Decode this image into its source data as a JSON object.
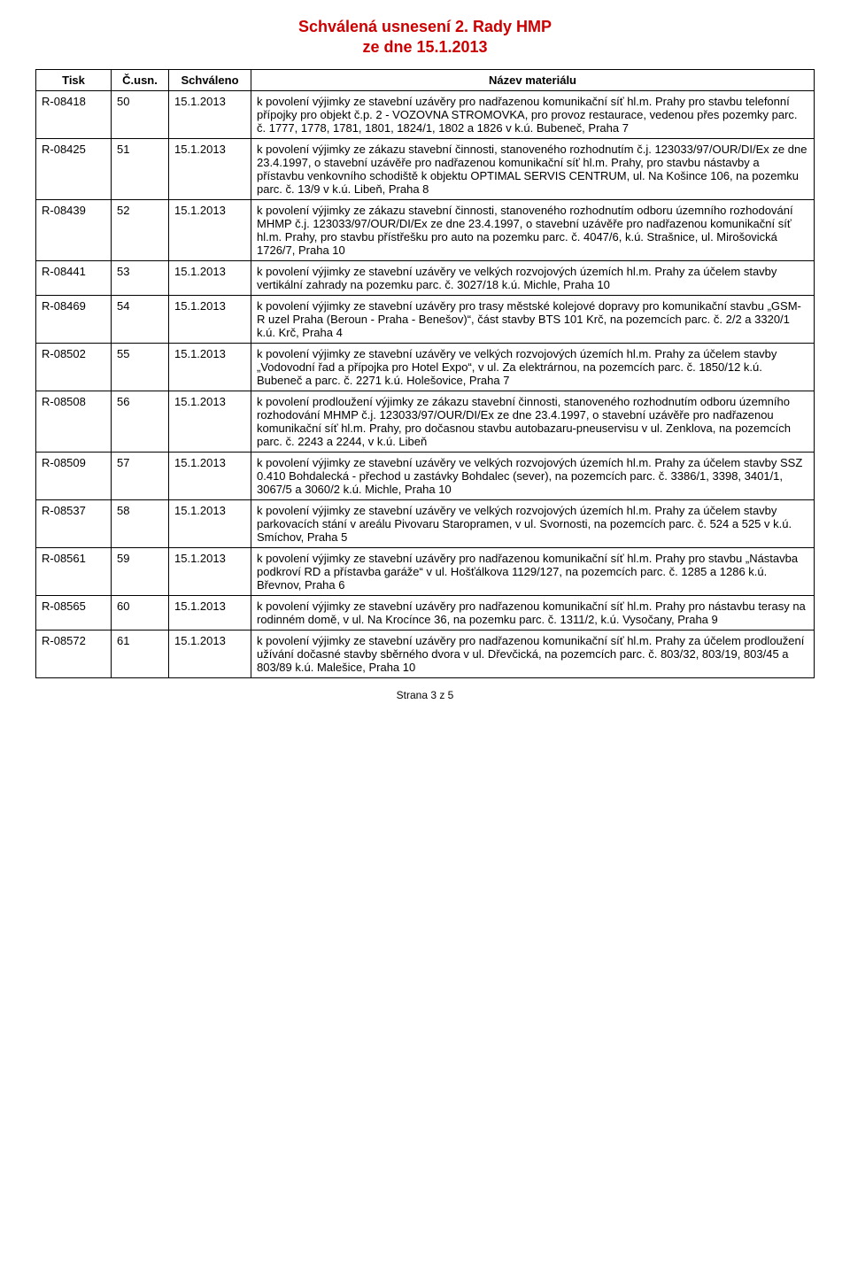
{
  "header": {
    "title": "Schválená usnesení 2. Rady HMP",
    "subtitle": "ze dne 15.1.2013"
  },
  "columns": {
    "tisk": "Tisk",
    "usn": "Č.usn.",
    "schvaleno": "Schváleno",
    "nazev": "Název materiálu"
  },
  "rows": [
    {
      "tisk": "R-08418",
      "usn": "50",
      "date": "15.1.2013",
      "text": "k povolení výjimky ze stavební uzávěry pro nadřazenou komunikační síť hl.m. Prahy pro stavbu telefonní přípojky pro objekt č.p. 2 - VOZOVNA STROMOVKA, pro provoz restaurace, vedenou přes pozemky parc. č. 1777, 1778, 1781, 1801, 1824/1, 1802 a 1826 v k.ú. Bubeneč, Praha 7"
    },
    {
      "tisk": "R-08425",
      "usn": "51",
      "date": "15.1.2013",
      "text": "k povolení výjimky ze zákazu stavební činnosti, stanoveného rozhodnutím č.j. 123033/97/OUR/DI/Ex ze dne 23.4.1997, o stavební uzávěře pro nadřazenou komunikační síť hl.m. Prahy, pro stavbu nástavby a přístavbu venkovního schodiště k objektu OPTIMAL SERVIS CENTRUM, ul. Na Košince 106, na pozemku parc. č. 13/9 v k.ú. Libeň, Praha 8"
    },
    {
      "tisk": "R-08439",
      "usn": "52",
      "date": "15.1.2013",
      "text": "k povolení výjimky ze zákazu stavební činnosti, stanoveného rozhodnutím odboru územního rozhodování MHMP č.j. 123033/97/OUR/DI/Ex ze dne 23.4.1997, o stavební uzávěře pro nadřazenou komunikační síť hl.m. Prahy, pro stavbu přístřešku pro auto na pozemku parc. č. 4047/6, k.ú. Strašnice, ul. Mirošovická 1726/7, Praha 10"
    },
    {
      "tisk": "R-08441",
      "usn": "53",
      "date": "15.1.2013",
      "text": "k povolení výjimky ze stavební uzávěry ve velkých rozvojových územích hl.m. Prahy za účelem stavby vertikální zahrady na pozemku parc. č. 3027/18 k.ú. Michle, Praha 10"
    },
    {
      "tisk": "R-08469",
      "usn": "54",
      "date": "15.1.2013",
      "text": "k povolení výjimky ze stavební uzávěry pro trasy městské kolejové dopravy pro komunikační stavbu „GSM-R uzel Praha (Beroun - Praha - Benešov)“, část stavby BTS 101 Krč, na pozemcích parc. č. 2/2 a 3320/1 k.ú. Krč, Praha 4"
    },
    {
      "tisk": "R-08502",
      "usn": "55",
      "date": "15.1.2013",
      "text": "k povolení výjimky ze stavební uzávěry ve velkých rozvojových územích hl.m. Prahy za účelem stavby „Vodovodní řad a přípojka pro Hotel Expo“, v ul. Za elektrárnou, na pozemcích parc. č. 1850/12 k.ú. Bubeneč a parc. č. 2271 k.ú. Holešovice, Praha 7"
    },
    {
      "tisk": "R-08508",
      "usn": "56",
      "date": "15.1.2013",
      "text": "k povolení prodloužení výjimky ze zákazu stavební činnosti, stanoveného rozhodnutím odboru územního rozhodování MHMP č.j. 123033/97/OUR/DI/Ex ze dne 23.4.1997, o stavební uzávěře pro nadřazenou komunikační síť hl.m. Prahy, pro dočasnou stavbu autobazaru-pneuservisu v ul. Zenklova, na pozemcích parc. č. 2243 a 2244, v k.ú. Libeň"
    },
    {
      "tisk": "R-08509",
      "usn": "57",
      "date": "15.1.2013",
      "text": "k povolení výjimky ze stavební uzávěry ve velkých rozvojových územích hl.m. Prahy za účelem stavby SSZ 0.410 Bohdalecká - přechod u zastávky Bohdalec (sever), na pozemcích parc. č. 3386/1, 3398, 3401/1, 3067/5 a 3060/2 k.ú. Michle, Praha 10"
    },
    {
      "tisk": "R-08537",
      "usn": "58",
      "date": "15.1.2013",
      "text": "k povolení výjimky ze stavební uzávěry ve velkých rozvojových územích hl.m. Prahy za účelem stavby parkovacích stání v areálu Pivovaru Staropramen, v ul. Svornosti, na pozemcích parc. č. 524 a 525 v k.ú. Smíchov, Praha 5"
    },
    {
      "tisk": "R-08561",
      "usn": "59",
      "date": "15.1.2013",
      "text": "k povolení výjimky ze stavební uzávěry pro nadřazenou komunikační síť hl.m. Prahy pro stavbu „Nástavba podkroví RD a přístavba garáže“ v ul. Hošťálkova 1129/127, na pozemcích parc. č. 1285 a 1286 k.ú. Břevnov, Praha 6"
    },
    {
      "tisk": "R-08565",
      "usn": "60",
      "date": "15.1.2013",
      "text": "k povolení výjimky ze stavební uzávěry pro nadřazenou komunikační síť hl.m. Prahy pro nástavbu terasy na rodinném domě, v ul. Na Krocínce 36, na pozemku parc. č. 1311/2, k.ú. Vysočany, Praha 9"
    },
    {
      "tisk": "R-08572",
      "usn": "61",
      "date": "15.1.2013",
      "text": "k povolení výjimky ze stavební uzávěry pro nadřazenou komunikační síť hl.m. Prahy za účelem prodloužení užívání dočasné stavby sběrného dvora v ul. Dřevčická, na pozemcích parc. č. 803/32, 803/19, 803/45 a 803/89 k.ú. Malešice, Praha 10"
    }
  ],
  "footer": "Strana 3 z 5"
}
